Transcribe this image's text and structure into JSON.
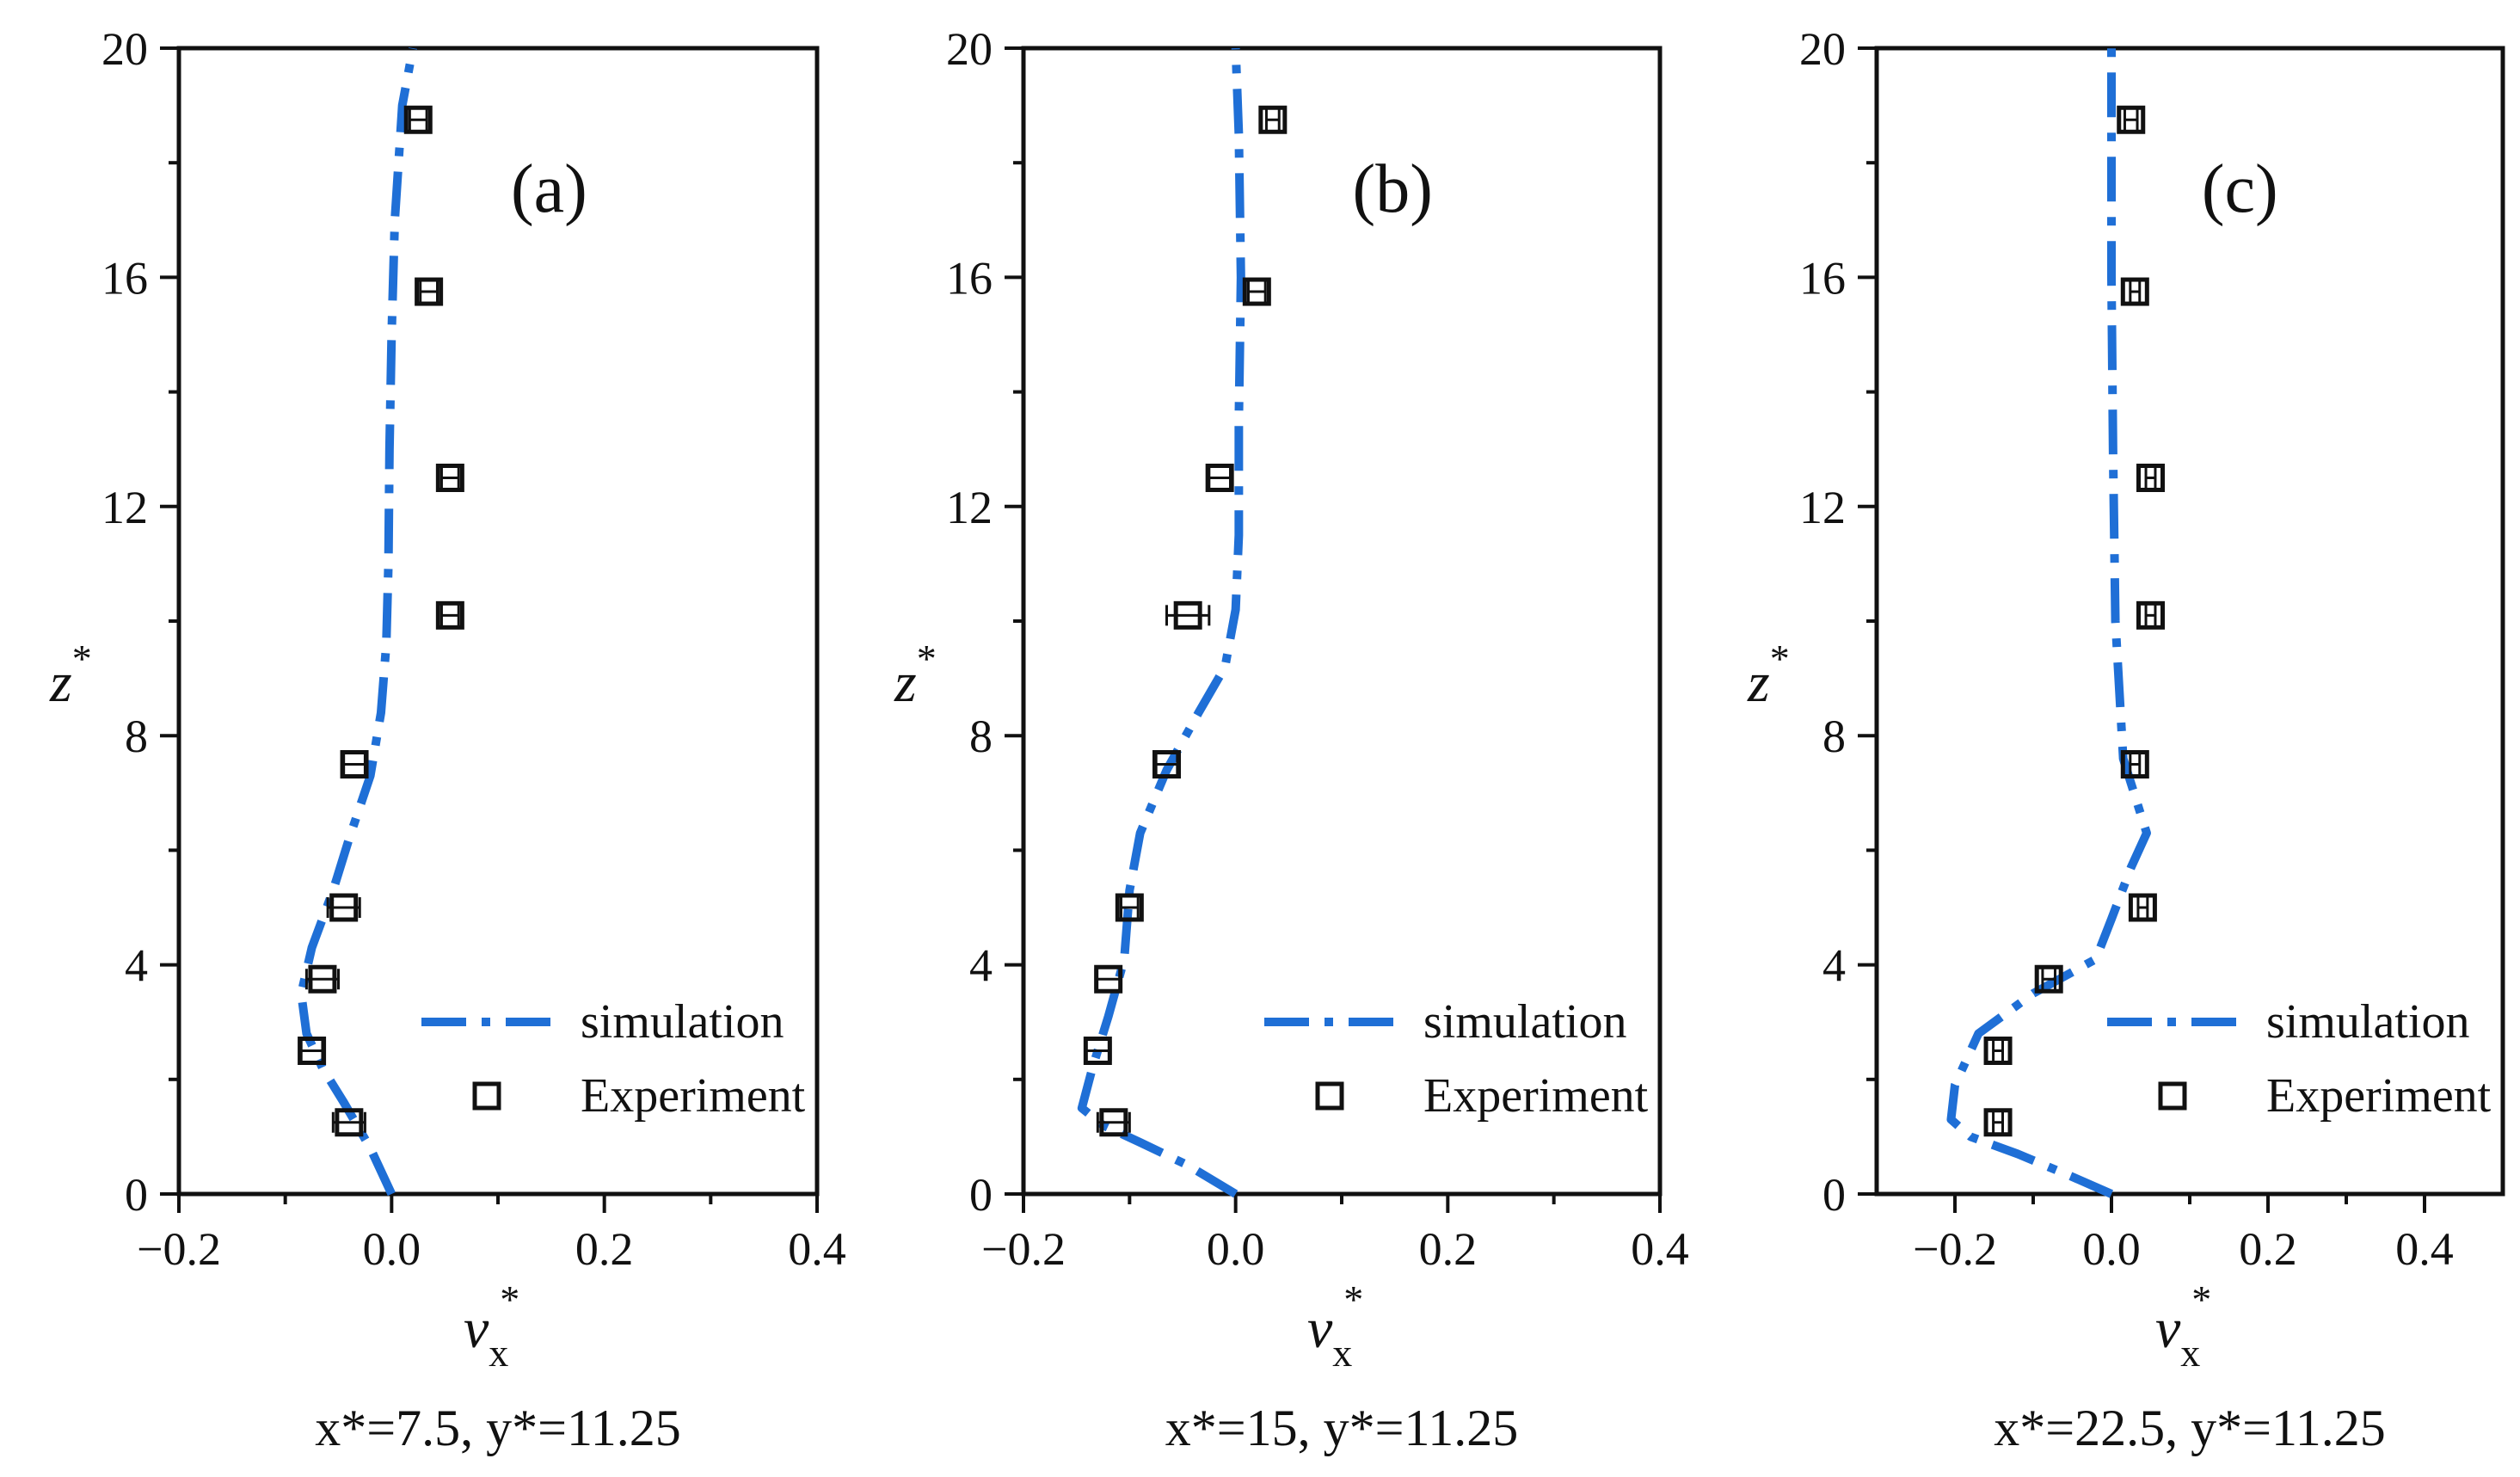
{
  "figure": {
    "colors": {
      "simulation": "#1f6fd6",
      "experiment": "#111111",
      "axes": "#111111"
    }
  },
  "chart_data": [
    {
      "type": "line",
      "panel_label": "(a)",
      "xlabel_main": "v",
      "xlabel_sub": "x",
      "xlabel_sup": "*",
      "ylabel_main": "z",
      "ylabel_sup": "*",
      "condition": "x*=7.5, y*=11.25",
      "xlim": [
        -0.2,
        0.4
      ],
      "ylim": [
        0,
        20
      ],
      "xticks": [
        -0.2,
        0.0,
        0.2,
        0.4
      ],
      "xtick_labels": [
        "−0.2",
        "0.0",
        "0.2",
        "0.4"
      ],
      "yticks": [
        0,
        4,
        8,
        12,
        16,
        20
      ],
      "ytick_labels": [
        "0",
        "4",
        "8",
        "12",
        "16",
        "20"
      ],
      "legend": {
        "position": "bottom-right",
        "simulation_label": "simulation",
        "experiment_label": "Experiment"
      },
      "series": [
        {
          "name": "simulation",
          "style": "dash-dot",
          "x": [
            0.0,
            -0.02,
            -0.045,
            -0.065,
            -0.08,
            -0.085,
            -0.075,
            -0.055,
            -0.04,
            -0.02,
            -0.01,
            -0.005,
            -0.003,
            -0.002,
            0.0,
            0.003,
            0.01,
            0.02
          ],
          "y": [
            0,
            0.8,
            1.6,
            2.2,
            2.8,
            3.5,
            4.3,
            5.3,
            6.2,
            7.3,
            8.4,
            9.6,
            11.0,
            13.0,
            15.0,
            17.0,
            19.0,
            20.0
          ]
        },
        {
          "name": "Experiment",
          "style": "open-square",
          "x": [
            -0.04,
            -0.075,
            -0.065,
            -0.045,
            -0.035,
            0.055,
            0.055,
            0.035,
            0.025
          ],
          "y": [
            1.25,
            2.5,
            3.75,
            5.0,
            7.5,
            10.1,
            12.5,
            15.75,
            18.75
          ],
          "xerr": [
            0.015,
            0.01,
            0.015,
            0.015,
            0.01,
            0.008,
            0.008,
            0.008,
            0.008
          ]
        }
      ]
    },
    {
      "type": "line",
      "panel_label": "(b)",
      "xlabel_main": "v",
      "xlabel_sub": "x",
      "xlabel_sup": "*",
      "ylabel_main": "z",
      "ylabel_sup": "*",
      "condition": "x*=15, y*=11.25",
      "xlim": [
        -0.2,
        0.4
      ],
      "ylim": [
        0,
        20
      ],
      "xticks": [
        -0.2,
        0.0,
        0.2,
        0.4
      ],
      "xtick_labels": [
        "−0.2",
        "0.0",
        "0.2",
        "0.4"
      ],
      "yticks": [
        0,
        4,
        8,
        12,
        16,
        20
      ],
      "ytick_labels": [
        "0",
        "4",
        "8",
        "12",
        "16",
        "20"
      ],
      "legend": {
        "position": "bottom-right",
        "simulation_label": "simulation",
        "experiment_label": "Experiment"
      },
      "series": [
        {
          "name": "simulation",
          "style": "dash-dot",
          "x": [
            0.0,
            -0.045,
            -0.09,
            -0.125,
            -0.145,
            -0.135,
            -0.12,
            -0.105,
            -0.1,
            -0.09,
            -0.065,
            -0.035,
            -0.01,
            0.0,
            0.003,
            0.003,
            0.005,
            0.003,
            0.0
          ],
          "y": [
            0,
            0.5,
            0.9,
            1.2,
            1.5,
            2.2,
            3.1,
            4.1,
            5.3,
            6.3,
            7.4,
            8.4,
            9.2,
            10.2,
            11.5,
            13.5,
            16.0,
            18.5,
            20.0
          ]
        },
        {
          "name": "Experiment",
          "style": "open-square",
          "x": [
            -0.115,
            -0.13,
            -0.12,
            -0.1,
            -0.065,
            -0.045,
            -0.015,
            0.02,
            0.035
          ],
          "y": [
            1.25,
            2.5,
            3.75,
            5.0,
            7.5,
            10.1,
            12.5,
            15.75,
            18.75
          ],
          "xerr": [
            0.015,
            0.012,
            0.012,
            0.008,
            0.01,
            0.02,
            0.01,
            0.008,
            0.006
          ]
        }
      ]
    },
    {
      "type": "line",
      "panel_label": "(c)",
      "xlabel_main": "v",
      "xlabel_sub": "x",
      "xlabel_sup": "*",
      "ylabel_main": "z",
      "ylabel_sup": "*",
      "condition": "x*=22.5, y*=11.25",
      "xlim": [
        -0.3,
        0.5
      ],
      "ylim": [
        0,
        20
      ],
      "xticks": [
        -0.2,
        0.0,
        0.2,
        0.4
      ],
      "xtick_labels": [
        "−0.2",
        "0.0",
        "0.2",
        "0.4"
      ],
      "yticks": [
        0,
        4,
        8,
        12,
        16,
        20
      ],
      "ytick_labels": [
        "0",
        "4",
        "8",
        "12",
        "16",
        "20"
      ],
      "legend": {
        "position": "bottom-right",
        "simulation_label": "simulation",
        "experiment_label": "Experiment"
      },
      "series": [
        {
          "name": "simulation",
          "style": "dash-dot",
          "x": [
            0.0,
            -0.05,
            -0.12,
            -0.18,
            -0.205,
            -0.2,
            -0.17,
            -0.1,
            -0.02,
            0.0,
            0.025,
            0.045,
            0.015,
            0.005,
            0.002,
            0.0,
            0.0
          ],
          "y": [
            0,
            0.3,
            0.7,
            1.0,
            1.3,
            1.9,
            2.8,
            3.5,
            4.1,
            4.8,
            5.7,
            6.3,
            7.6,
            10.0,
            13.0,
            16.0,
            20.0
          ]
        },
        {
          "name": "Experiment",
          "style": "open-square",
          "x": [
            -0.145,
            -0.145,
            -0.08,
            0.04,
            0.03,
            0.05,
            0.05,
            0.03,
            0.025
          ],
          "y": [
            1.25,
            2.5,
            3.75,
            5.0,
            7.5,
            10.1,
            12.5,
            15.75,
            18.75
          ],
          "xerr": [
            0.006,
            0.006,
            0.008,
            0.006,
            0.006,
            0.006,
            0.006,
            0.006,
            0.008
          ]
        }
      ]
    }
  ]
}
